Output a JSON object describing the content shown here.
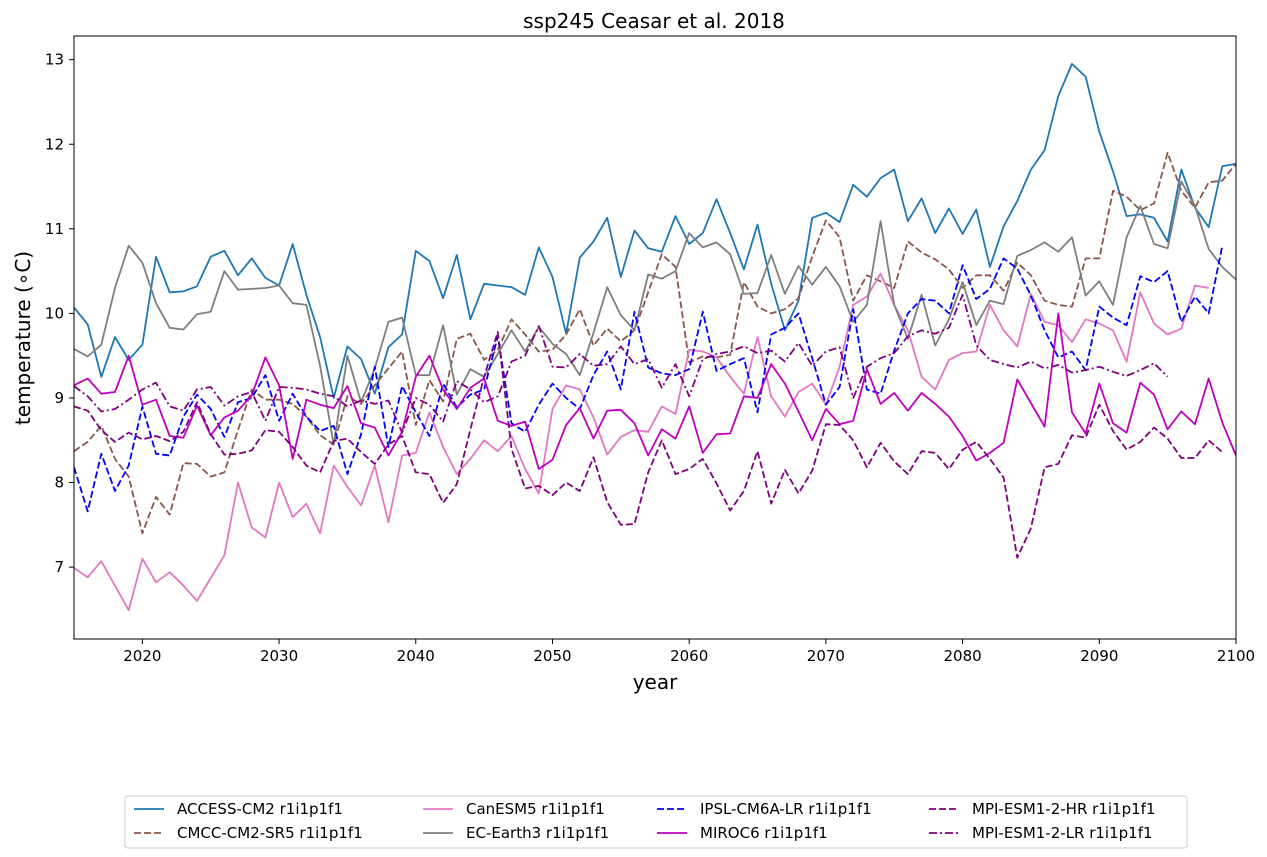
{
  "chart_data": {
    "type": "line",
    "title": "ssp245 Ceasar et al. 2018",
    "xlabel": "year",
    "ylabel": "temperature (∘C)",
    "xlim": [
      2015,
      2100
    ],
    "ylim": [
      6.15,
      13.28
    ],
    "xticks": [
      2020,
      2030,
      2040,
      2050,
      2060,
      2070,
      2080,
      2090,
      2100
    ],
    "yticks": [
      7,
      8,
      9,
      10,
      11,
      12,
      13
    ],
    "grid": false,
    "legend_position": "bottom-center, 4 columns",
    "x_start": 2015,
    "series": [
      {
        "name": "ACCESS-CM2 r1i1p1f1",
        "color": "#1f77b4",
        "dash": "solid",
        "values": [
          10.07,
          9.87,
          9.25,
          9.72,
          9.45,
          9.63,
          10.67,
          10.25,
          10.26,
          10.32,
          10.67,
          10.74,
          10.45,
          10.65,
          10.42,
          10.33,
          10.82,
          10.22,
          9.72,
          9.0,
          9.61,
          9.46,
          9.05,
          9.6,
          9.75,
          10.74,
          10.62,
          10.18,
          10.69,
          9.93,
          10.35,
          10.33,
          10.31,
          10.22,
          10.78,
          10.43,
          9.76,
          10.66,
          10.85,
          11.13,
          10.43,
          10.98,
          10.77,
          10.73,
          11.15,
          10.82,
          10.95,
          11.35,
          10.95,
          10.52,
          11.05,
          10.35,
          9.8,
          10.15,
          11.13,
          11.19,
          11.08,
          11.52,
          11.38,
          11.6,
          11.7,
          11.09,
          11.36,
          10.95,
          11.24,
          10.94,
          11.23,
          10.55,
          11.03,
          11.33,
          11.7,
          11.93,
          12.57,
          12.95,
          12.8,
          12.15,
          11.68,
          11.15,
          11.17,
          11.13,
          10.85,
          11.7,
          11.25,
          11.02,
          11.74,
          11.77
        ]
      },
      {
        "name": "CMCC-CM2-SR5 r1i1p1f1",
        "color": "#8c564b",
        "dash": "dashed",
        "values": [
          8.37,
          8.48,
          8.67,
          8.28,
          8.07,
          7.4,
          7.83,
          7.62,
          8.23,
          8.22,
          8.07,
          8.12,
          8.62,
          9.1,
          8.98,
          8.98,
          8.93,
          8.78,
          8.56,
          8.45,
          9.02,
          8.93,
          9.15,
          9.35,
          9.55,
          8.68,
          9.21,
          8.96,
          9.7,
          9.76,
          9.45,
          9.57,
          9.93,
          9.75,
          9.55,
          9.57,
          9.75,
          10.05,
          9.62,
          9.82,
          9.67,
          9.8,
          10.25,
          10.7,
          10.55,
          9.42,
          9.49,
          9.48,
          9.51,
          10.37,
          10.08,
          10.0,
          10.05,
          10.18,
          10.67,
          11.1,
          10.9,
          10.15,
          10.45,
          10.38,
          10.3,
          10.85,
          10.72,
          10.64,
          10.52,
          10.3,
          10.45,
          10.45,
          10.27,
          10.6,
          10.45,
          10.15,
          10.1,
          10.08,
          10.65,
          10.65,
          11.45,
          11.38,
          11.22,
          11.3,
          11.9,
          11.45,
          11.25,
          11.55,
          11.57,
          11.77
        ]
      },
      {
        "name": "CanESM5 r1i1p1f1",
        "color": "#e377c2",
        "dash": "solid",
        "values": [
          6.99,
          6.88,
          7.07,
          6.78,
          6.49,
          7.1,
          6.82,
          6.94,
          6.78,
          6.6,
          6.87,
          7.14,
          8.0,
          7.47,
          7.35,
          8.0,
          7.59,
          7.75,
          7.4,
          8.2,
          7.95,
          7.73,
          8.2,
          7.53,
          8.32,
          8.35,
          8.83,
          8.42,
          8.1,
          8.28,
          8.5,
          8.37,
          8.55,
          8.16,
          7.87,
          8.87,
          9.15,
          9.1,
          8.77,
          8.33,
          8.54,
          8.62,
          8.6,
          8.9,
          8.81,
          9.57,
          9.55,
          9.48,
          9.25,
          9.05,
          9.72,
          9.02,
          8.78,
          9.07,
          9.17,
          8.92,
          9.37,
          10.1,
          10.2,
          10.47,
          10.1,
          9.8,
          9.25,
          9.1,
          9.45,
          9.53,
          9.55,
          10.1,
          9.8,
          9.61,
          10.23,
          9.9,
          9.86,
          9.66,
          9.93,
          9.88,
          9.8,
          9.43,
          10.25,
          9.88,
          9.75,
          9.82,
          10.33,
          10.3
        ]
      },
      {
        "name": "EC-Earth3 r1i1p1f1",
        "color": "#7f7f7f",
        "dash": "solid",
        "values": [
          9.58,
          9.49,
          9.63,
          10.3,
          10.8,
          10.6,
          10.12,
          9.83,
          9.81,
          9.99,
          10.02,
          10.5,
          10.28,
          10.29,
          10.3,
          10.33,
          10.12,
          10.1,
          9.38,
          8.45,
          9.5,
          8.95,
          9.35,
          9.9,
          9.95,
          9.27,
          9.27,
          9.86,
          9.04,
          9.34,
          9.25,
          9.52,
          9.8,
          9.55,
          9.84,
          9.64,
          9.52,
          9.27,
          9.77,
          10.31,
          9.98,
          9.8,
          10.46,
          10.41,
          10.5,
          10.95,
          10.78,
          10.84,
          10.7,
          10.23,
          10.24,
          10.69,
          10.23,
          10.56,
          10.34,
          10.55,
          10.32,
          9.9,
          10.1,
          11.09,
          10.1,
          9.7,
          10.22,
          9.62,
          9.93,
          10.37,
          9.86,
          10.15,
          10.11,
          10.68,
          10.75,
          10.84,
          10.73,
          10.9,
          10.21,
          10.38,
          10.1,
          10.9,
          11.27,
          10.82,
          10.77,
          11.56,
          11.27,
          10.76,
          10.55,
          10.4
        ]
      },
      {
        "name": "IPSL-CM6A-LR r1i1p1f1",
        "color": "#0000ff",
        "dash": "dashed",
        "values": [
          8.18,
          7.66,
          8.34,
          7.9,
          8.2,
          8.9,
          8.34,
          8.32,
          8.78,
          9.04,
          8.87,
          8.54,
          8.95,
          9.0,
          9.27,
          8.73,
          9.05,
          8.78,
          8.61,
          8.67,
          8.1,
          8.57,
          9.37,
          8.42,
          9.14,
          8.83,
          8.55,
          9.17,
          8.89,
          9.04,
          9.1,
          9.73,
          8.7,
          8.6,
          8.92,
          9.17,
          9.0,
          8.87,
          9.27,
          9.55,
          9.1,
          10.02,
          9.36,
          9.29,
          9.27,
          9.34,
          10.02,
          9.32,
          9.4,
          9.47,
          8.83,
          9.75,
          9.83,
          10.0,
          9.47,
          8.92,
          9.13,
          10.05,
          9.1,
          9.05,
          9.56,
          10.0,
          10.17,
          10.15,
          10.0,
          10.57,
          10.17,
          10.29,
          10.65,
          10.53,
          10.21,
          9.8,
          9.48,
          9.55,
          9.33,
          10.08,
          9.95,
          9.86,
          10.44,
          10.37,
          10.5,
          9.9,
          10.2,
          10.0,
          10.8
        ]
      },
      {
        "name": "MIROC6 r1i1p1f1",
        "color": "#bf00bf",
        "dash": "solid",
        "values": [
          9.15,
          9.23,
          9.05,
          9.07,
          9.5,
          8.92,
          8.98,
          8.55,
          8.53,
          8.91,
          8.56,
          8.77,
          8.85,
          9.03,
          9.48,
          9.15,
          8.28,
          8.98,
          8.92,
          8.88,
          9.14,
          8.7,
          8.65,
          8.32,
          8.6,
          9.25,
          9.5,
          9.1,
          8.87,
          9.12,
          9.23,
          8.73,
          8.67,
          8.72,
          8.16,
          8.27,
          8.68,
          8.88,
          8.52,
          8.85,
          8.86,
          8.7,
          8.32,
          8.63,
          8.52,
          8.9,
          8.35,
          8.57,
          8.58,
          9.02,
          9.0,
          9.4,
          9.17,
          8.84,
          8.5,
          8.87,
          8.69,
          8.73,
          9.34,
          8.93,
          9.06,
          8.85,
          9.06,
          8.93,
          8.78,
          8.55,
          8.26,
          8.35,
          8.47,
          9.22,
          8.94,
          8.66,
          10.0,
          8.83,
          8.58,
          9.17,
          8.7,
          8.59,
          9.18,
          9.04,
          8.63,
          8.84,
          8.69,
          9.23,
          8.71,
          8.32,
          8.23
        ]
      },
      {
        "name": "MPI-ESM1-2-HR r1i1p1f1",
        "color": "#800080",
        "dash": "dashed",
        "values": [
          8.9,
          8.85,
          8.62,
          8.48,
          8.59,
          8.51,
          8.55,
          8.49,
          8.6,
          8.95,
          8.57,
          8.33,
          8.34,
          8.38,
          8.62,
          8.6,
          8.42,
          8.2,
          8.12,
          8.49,
          8.52,
          8.36,
          8.22,
          8.45,
          8.55,
          8.12,
          8.1,
          7.76,
          7.98,
          8.63,
          9.25,
          9.78,
          8.4,
          7.93,
          7.96,
          7.85,
          8.0,
          7.9,
          8.3,
          7.77,
          7.5,
          7.51,
          8.12,
          8.5,
          8.1,
          8.16,
          8.28,
          7.99,
          7.67,
          7.9,
          8.37,
          7.75,
          8.15,
          7.87,
          8.14,
          8.69,
          8.68,
          8.5,
          8.18,
          8.47,
          8.25,
          8.1,
          8.37,
          8.35,
          8.16,
          8.39,
          8.48,
          8.28,
          8.06,
          7.11,
          7.46,
          8.18,
          8.22,
          8.56,
          8.53,
          8.92,
          8.61,
          8.39,
          8.48,
          8.65,
          8.52,
          8.29,
          8.29,
          8.5,
          8.36
        ]
      },
      {
        "name": "MPI-ESM1-2-LR r1i1p1f1",
        "color": "#800080",
        "dash": "dashdot",
        "values": [
          9.14,
          9.02,
          8.84,
          8.87,
          8.98,
          9.1,
          9.18,
          8.9,
          8.85,
          9.1,
          9.13,
          8.91,
          9.02,
          9.07,
          8.73,
          9.13,
          9.12,
          9.1,
          9.05,
          9.02,
          8.9,
          8.97,
          8.93,
          8.97,
          8.59,
          9.0,
          8.92,
          8.72,
          9.2,
          9.1,
          8.95,
          9.02,
          9.43,
          9.5,
          9.85,
          9.37,
          9.36,
          9.52,
          9.38,
          9.4,
          9.61,
          9.4,
          9.46,
          9.12,
          9.4,
          9.02,
          9.46,
          9.52,
          9.55,
          9.61,
          9.53,
          9.56,
          9.43,
          9.65,
          9.38,
          9.55,
          9.6,
          9.0,
          9.37,
          9.47,
          9.53,
          9.73,
          9.8,
          9.76,
          9.83,
          10.22,
          9.62,
          9.45,
          9.4,
          9.36,
          9.43,
          9.35,
          9.39,
          9.3,
          9.33,
          9.37,
          9.31,
          9.26,
          9.33,
          9.41,
          9.25
        ]
      }
    ]
  }
}
